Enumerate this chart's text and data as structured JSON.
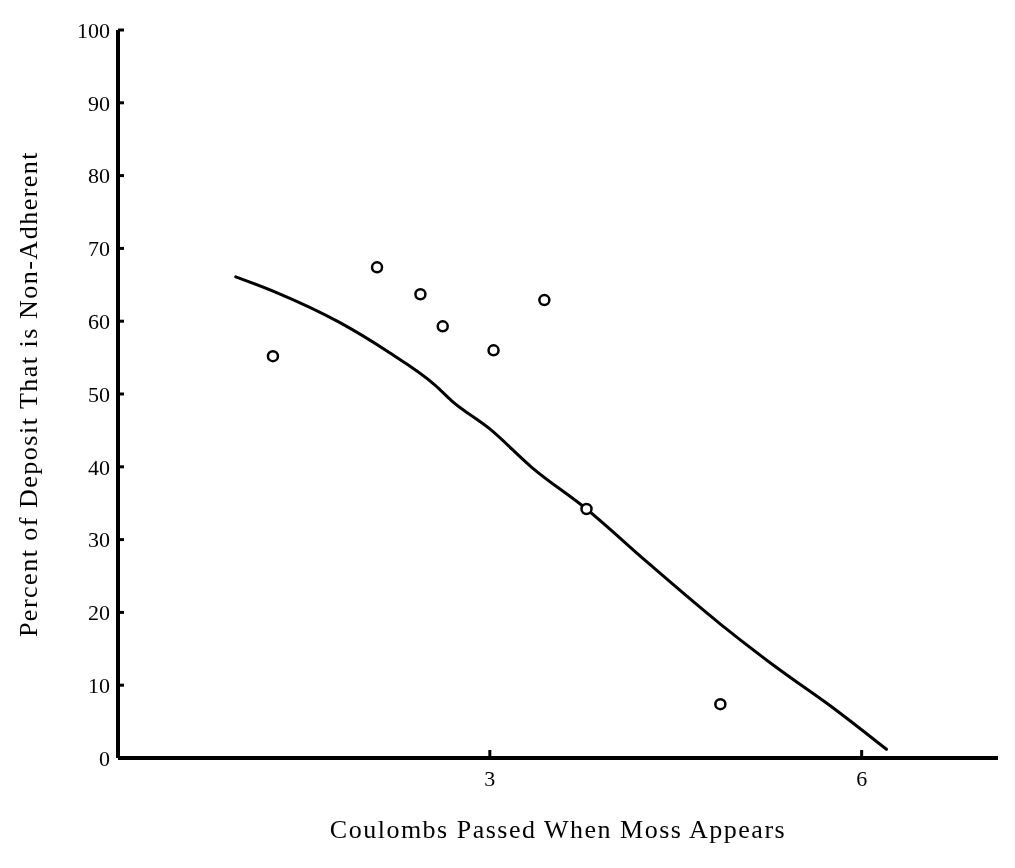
{
  "chart_data": {
    "type": "scatter",
    "xlabel": "Coulombs Passed When Moss Appears",
    "ylabel": "Percent of Deposit That is Non-Adherent",
    "xlim": [
      0,
      7.1
    ],
    "xticks": [
      3,
      6
    ],
    "ylim": [
      0,
      100
    ],
    "yticks": [
      0,
      10,
      20,
      30,
      40,
      50,
      60,
      70,
      80,
      90,
      100
    ],
    "grid": false,
    "legend": false,
    "series": [
      {
        "marker": "circle",
        "color": "#000000",
        "x": [
          1.25,
          2.09,
          2.44,
          2.62,
          3.03,
          3.44,
          3.78,
          4.86
        ],
        "values": [
          55.2,
          67.4,
          63.7,
          59.3,
          56,
          62.9,
          34.2,
          7.4
        ]
      },
      {
        "type": "line",
        "marker": "none",
        "color": "#000000",
        "line_style": "solid",
        "x": [
          0.95,
          1.27,
          1.78,
          2.17,
          2.56,
          2.69,
          3.0,
          3.34,
          3.78,
          4.27,
          4.86,
          5.3,
          5.8,
          6.2
        ],
        "values": [
          66.1,
          64,
          59.9,
          55.9,
          51.2,
          49.1,
          45.2,
          39.9,
          34.2,
          26.9,
          18.4,
          12.6,
          6.5,
          1.2
        ]
      }
    ]
  }
}
